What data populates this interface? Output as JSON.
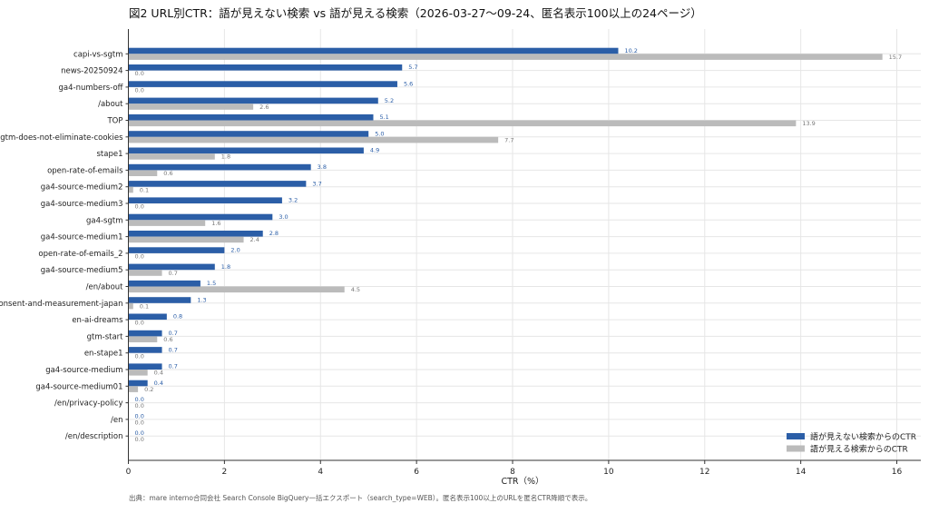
{
  "title": "図2 URL別CTR：語が見えない検索 vs 語が見える検索（2026-03-27〜09-24、匿名表示100以上の24ページ）",
  "footer": "出典：mare interno合同会社 Search Console BigQuery一括エクスポート（search_type=WEB）。匿名表示100以上のURLを匿名CTR降順で表示。",
  "chart_data": {
    "type": "bar",
    "orientation": "horizontal",
    "title": "図2 URL別CTR：語が見えない検索 vs 語が見える検索（2026-03-27〜09-24、匿名表示100以上の24ページ）",
    "xlabel": "CTR（%）",
    "ylabel": "",
    "xlim": [
      0,
      16.5
    ],
    "xticks": [
      0,
      2,
      4,
      6,
      8,
      10,
      12,
      14,
      16
    ],
    "grid": true,
    "legend_position": "bottom-right",
    "categories": [
      "capi-vs-sgtm",
      "news-20250924",
      "ga4-numbers-off",
      "/about",
      "TOP",
      "sgtm-does-not-eliminate-cookies",
      "stape1",
      "open-rate-of-emails",
      "ga4-source-medium2",
      "ga4-source-medium3",
      "ga4-sgtm",
      "ga4-source-medium1",
      "open-rate-of-emails_2",
      "ga4-source-medium5",
      "/en/about",
      "consent-and-measurement-japan",
      "en-ai-dreams",
      "gtm-start",
      "en-stape1",
      "ga4-source-medium",
      "ga4-source-medium01",
      "/en/privacy-policy",
      "/en",
      "/en/description"
    ],
    "series": [
      {
        "name": "語が見えない検索からのCTR",
        "color": "#2b5ea7",
        "values": [
          10.2,
          5.7,
          5.6,
          5.2,
          5.1,
          5.0,
          4.9,
          3.8,
          3.7,
          3.2,
          3.0,
          2.8,
          2.0,
          1.8,
          1.5,
          1.3,
          0.8,
          0.7,
          0.7,
          0.7,
          0.4,
          0.0,
          0.0,
          0.0
        ],
        "labels": [
          "10.2",
          "5.7",
          "5.6",
          "5.2",
          "5.1",
          "5.0",
          "4.9",
          "3.8",
          "3.7",
          "3.2",
          "3.0",
          "2.8",
          "2.0",
          "1.8",
          "1.5",
          "1.3",
          "0.8",
          "0.7",
          "0.7",
          "0.7",
          "0.4",
          "0.0",
          "0.0",
          "0.0"
        ]
      },
      {
        "name": "語が見える検索からのCTR",
        "color": "#bbbbbb",
        "values": [
          15.7,
          0.0,
          0.0,
          2.6,
          13.9,
          7.7,
          1.8,
          0.6,
          0.1,
          0.0,
          1.6,
          2.4,
          0.0,
          0.7,
          4.5,
          0.1,
          0.0,
          0.6,
          0.0,
          0.4,
          0.2,
          0.0,
          0.0,
          0.0
        ],
        "labels": [
          "15.7",
          "0.0",
          "0.0",
          "2.6",
          "13.9",
          "7.7",
          "1.8",
          "0.6",
          "0.1",
          "0.0",
          "1.6",
          "2.4",
          "0.0",
          "0.7",
          "4.5",
          "0.1",
          "0.0",
          "0.6",
          "0.0",
          "0.4",
          "0.2",
          "0.0",
          "0.0",
          "0.0"
        ]
      }
    ]
  }
}
